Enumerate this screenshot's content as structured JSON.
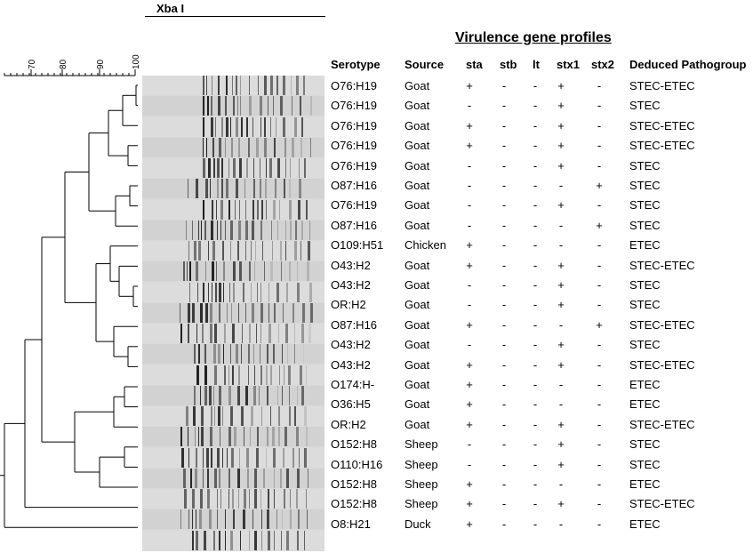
{
  "enzyme": "Xba I",
  "section_title": "Virulence gene profiles",
  "scale_ticks": [
    "70",
    "80",
    "90",
    "100"
  ],
  "headers": {
    "serotype": "Serotype",
    "source": "Source",
    "sta": "sta",
    "stb": "stb",
    "lt": "lt",
    "stx1": "stx1",
    "stx2": "stx2",
    "pathogroup": "Deduced Pathogroup"
  },
  "rows": [
    {
      "serotype": "O76:H19",
      "source": "Goat",
      "sta": "+",
      "stb": "-",
      "lt": "-",
      "stx1": "+",
      "stx2": "-",
      "pathogroup": "STEC-ETEC"
    },
    {
      "serotype": "O76:H19",
      "source": "Goat",
      "sta": "-",
      "stb": "-",
      "lt": "-",
      "stx1": "+",
      "stx2": "-",
      "pathogroup": "STEC"
    },
    {
      "serotype": "O76:H19",
      "source": "Goat",
      "sta": "+",
      "stb": "-",
      "lt": "-",
      "stx1": "+",
      "stx2": "-",
      "pathogroup": "STEC-ETEC"
    },
    {
      "serotype": "O76:H19",
      "source": "Goat",
      "sta": "+",
      "stb": "-",
      "lt": "-",
      "stx1": "+",
      "stx2": "-",
      "pathogroup": "STEC-ETEC"
    },
    {
      "serotype": "O76:H19",
      "source": "Goat",
      "sta": "-",
      "stb": "-",
      "lt": "-",
      "stx1": "+",
      "stx2": "-",
      "pathogroup": "STEC"
    },
    {
      "serotype": "O87:H16",
      "source": "Goat",
      "sta": "-",
      "stb": "-",
      "lt": "-",
      "stx1": "-",
      "stx2": "+",
      "pathogroup": "STEC"
    },
    {
      "serotype": "O76:H19",
      "source": "Goat",
      "sta": "-",
      "stb": "-",
      "lt": "-",
      "stx1": "+",
      "stx2": "-",
      "pathogroup": "STEC"
    },
    {
      "serotype": "O87:H16",
      "source": "Goat",
      "sta": "-",
      "stb": "-",
      "lt": "-",
      "stx1": "-",
      "stx2": "+",
      "pathogroup": "STEC"
    },
    {
      "serotype": "O109:H51",
      "source": "Chicken",
      "sta": "+",
      "stb": "-",
      "lt": "-",
      "stx1": "-",
      "stx2": "-",
      "pathogroup": "ETEC"
    },
    {
      "serotype": "O43:H2",
      "source": "Goat",
      "sta": "+",
      "stb": "-",
      "lt": "-",
      "stx1": "+",
      "stx2": "-",
      "pathogroup": "STEC-ETEC"
    },
    {
      "serotype": "O43:H2",
      "source": "Goat",
      "sta": "-",
      "stb": "-",
      "lt": "-",
      "stx1": "+",
      "stx2": "-",
      "pathogroup": "STEC"
    },
    {
      "serotype": "OR:H2",
      "source": "Goat",
      "sta": "-",
      "stb": "-",
      "lt": "-",
      "stx1": "+",
      "stx2": "-",
      "pathogroup": "STEC"
    },
    {
      "serotype": "O87:H16",
      "source": "Goat",
      "sta": "+",
      "stb": "-",
      "lt": "-",
      "stx1": "-",
      "stx2": "+",
      "pathogroup": "STEC-ETEC"
    },
    {
      "serotype": "O43:H2",
      "source": "Goat",
      "sta": "-",
      "stb": "-",
      "lt": "-",
      "stx1": "+",
      "stx2": "-",
      "pathogroup": "STEC"
    },
    {
      "serotype": "O43:H2",
      "source": "Goat",
      "sta": "+",
      "stb": "-",
      "lt": "-",
      "stx1": "+",
      "stx2": "-",
      "pathogroup": "STEC-ETEC"
    },
    {
      "serotype": "O174:H-",
      "source": "Goat",
      "sta": "+",
      "stb": "-",
      "lt": "-",
      "stx1": "-",
      "stx2": "-",
      "pathogroup": "ETEC"
    },
    {
      "serotype": "O36:H5",
      "source": "Goat",
      "sta": "+",
      "stb": "-",
      "lt": "-",
      "stx1": "-",
      "stx2": "-",
      "pathogroup": "ETEC"
    },
    {
      "serotype": "OR:H2",
      "source": "Goat",
      "sta": "+",
      "stb": "-",
      "lt": "-",
      "stx1": "+",
      "stx2": "-",
      "pathogroup": "STEC-ETEC"
    },
    {
      "serotype": "O152:H8",
      "source": "Sheep",
      "sta": "-",
      "stb": "-",
      "lt": "-",
      "stx1": "+",
      "stx2": "-",
      "pathogroup": "STEC"
    },
    {
      "serotype": "O110:H16",
      "source": "Sheep",
      "sta": "-",
      "stb": "-",
      "lt": "-",
      "stx1": "+",
      "stx2": "-",
      "pathogroup": "STEC"
    },
    {
      "serotype": "O152:H8",
      "source": "Sheep",
      "sta": "+",
      "stb": "-",
      "lt": "-",
      "stx1": "-",
      "stx2": "-",
      "pathogroup": "ETEC"
    },
    {
      "serotype": "O152:H8",
      "source": "Sheep",
      "sta": "+",
      "stb": "-",
      "lt": "-",
      "stx1": "+",
      "stx2": "-",
      "pathogroup": "STEC-ETEC"
    },
    {
      "serotype": "O8:H21",
      "source": "Duck",
      "sta": "+",
      "stb": "-",
      "lt": "-",
      "stx1": "-",
      "stx2": "-",
      "pathogroup": "ETEC"
    }
  ]
}
